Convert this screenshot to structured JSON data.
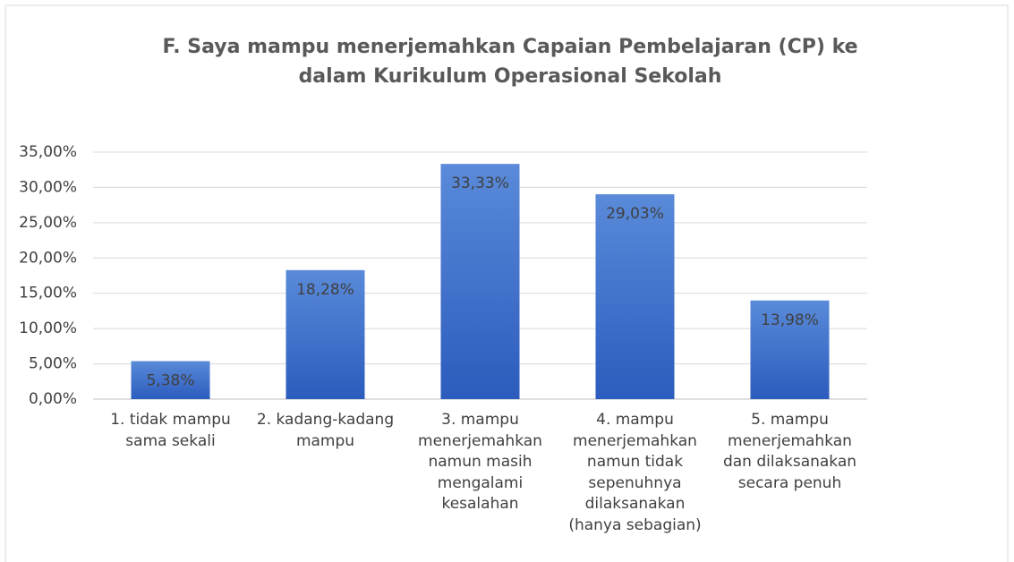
{
  "chart_data": {
    "type": "bar",
    "title": "F. Saya mampu menerjemahkan Capaian Pembelajaran (CP) ke dalam Kurikulum Operasional Sekolah",
    "categories": [
      "1. tidak mampu sama sekali",
      "2. kadang-kadang mampu",
      "3. mampu menerjemahkan namun masih mengalami kesalahan",
      "4. mampu menerjemahkan namun tidak sepenuhnya dilaksanakan (hanya sebagian)",
      "5. mampu menerjemahkan dan dilaksanakan secara penuh"
    ],
    "values": [
      5.38,
      18.28,
      33.33,
      29.03,
      13.98
    ],
    "value_labels": [
      "5,38%",
      "18,28%",
      "33,33%",
      "29,03%",
      "13,98%"
    ],
    "color": "#3d6fcc",
    "ylim": [
      0,
      35
    ],
    "yticks": [
      {
        "value": 0,
        "label": "0,00%"
      },
      {
        "value": 5,
        "label": "5,00%"
      },
      {
        "value": 10,
        "label": "10,00%"
      },
      {
        "value": 15,
        "label": "15,00%"
      },
      {
        "value": 20,
        "label": "20,00%"
      },
      {
        "value": 25,
        "label": "25,00%"
      },
      {
        "value": 30,
        "label": "30,00%"
      },
      {
        "value": 35,
        "label": "35,00%"
      }
    ],
    "grid": true
  }
}
